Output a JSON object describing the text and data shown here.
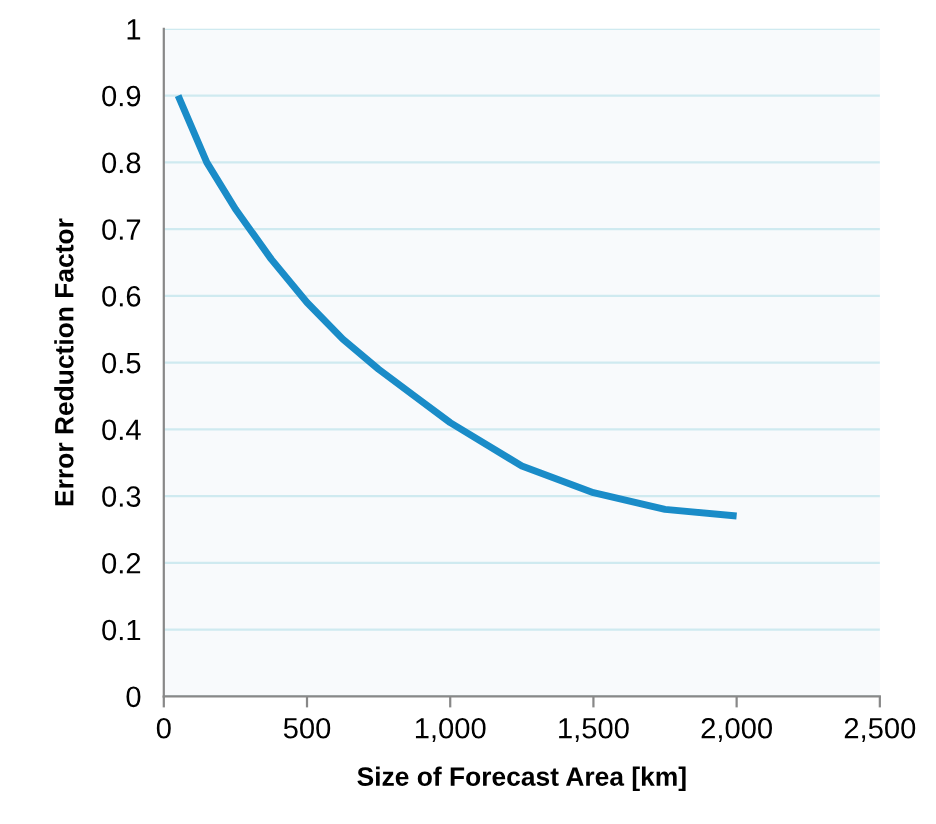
{
  "chart_data": {
    "type": "line",
    "xlabel": "Size of Forecast Area [km]",
    "ylabel": "Error Reduction Factor",
    "x": [
      50,
      150,
      250,
      375,
      500,
      625,
      750,
      875,
      1000,
      1250,
      1500,
      1750,
      2000
    ],
    "series": [
      {
        "color": "#1a8cc8",
        "values": [
          0.9,
          0.8,
          0.73,
          0.655,
          0.59,
          0.535,
          0.49,
          0.45,
          0.41,
          0.345,
          0.305,
          0.28,
          0.27
        ]
      }
    ],
    "xlim": [
      0,
      2500
    ],
    "xticks": [
      0,
      500,
      {
        "value": 1000,
        "label": "1,000"
      },
      {
        "value": 1500,
        "label": "1,500"
      },
      {
        "value": 2000,
        "label": "2,000"
      },
      {
        "value": 2500,
        "label": "2,500"
      }
    ],
    "ylim": [
      0,
      1
    ],
    "yticks": [
      0,
      0.1,
      0.2,
      0.3,
      0.4,
      0.5,
      0.6,
      0.7,
      0.8,
      0.9,
      1
    ],
    "grid": "y",
    "marker": "none",
    "line_style": "solid"
  }
}
